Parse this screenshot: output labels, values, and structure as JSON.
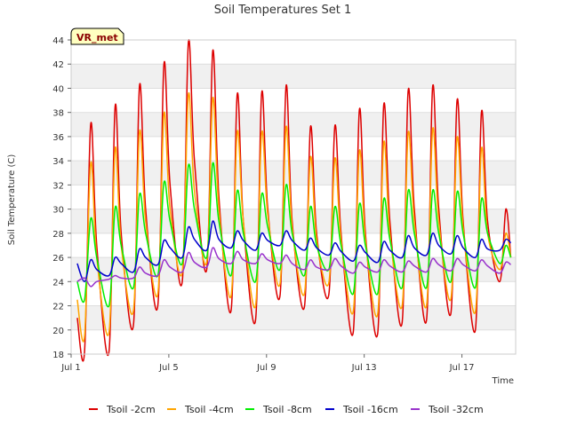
{
  "chart_data": {
    "type": "line",
    "title": "Soil Temperatures Set 1",
    "xlabel": "Time",
    "ylabel": "Soil Temperature (C)",
    "badge": "VR_met",
    "ylim": [
      18,
      44
    ],
    "yticks": [
      18,
      20,
      22,
      24,
      26,
      28,
      30,
      32,
      34,
      36,
      38,
      40,
      42,
      44
    ],
    "xlim": [
      0,
      18.2
    ],
    "xticks": [
      {
        "label": "Jul 1",
        "value": 0
      },
      {
        "label": "Jul 5",
        "value": 4
      },
      {
        "label": "Jul 9",
        "value": 8
      },
      {
        "label": "Jul 13",
        "value": 12
      },
      {
        "label": "Jul 17",
        "value": 16
      }
    ],
    "grid": "horizontal bands",
    "legend_position": "bottom",
    "x": [
      0.25,
      0.55,
      0.8,
      1.05,
      1.55,
      1.8,
      2.05,
      2.55,
      2.8,
      3.05,
      3.55,
      3.8,
      4.05,
      4.55,
      4.8,
      5.05,
      5.55,
      5.8,
      6.05,
      6.55,
      6.8,
      7.05,
      7.55,
      7.8,
      8.05,
      8.55,
      8.8,
      9.05,
      9.55,
      9.8,
      10.05,
      10.55,
      10.8,
      11.05,
      11.55,
      11.8,
      12.05,
      12.55,
      12.8,
      13.05,
      13.55,
      13.8,
      14.05,
      14.55,
      14.8,
      15.05,
      15.55,
      15.8,
      16.05,
      16.55,
      16.8,
      17.05,
      17.55,
      17.8,
      18.0
    ],
    "series": [
      {
        "name": "Tsoil -2cm",
        "color": "#dd0000",
        "values": [
          21,
          18.2,
          37,
          27,
          18.2,
          38.5,
          28,
          20.4,
          40.2,
          30,
          22,
          42,
          32,
          24,
          43.8,
          34,
          25,
          43.1,
          31,
          21.6,
          39.5,
          29,
          20.8,
          39.6,
          30,
          22.8,
          40.2,
          29,
          21.9,
          36.8,
          28,
          22.9,
          36.9,
          28,
          19.8,
          38.2,
          28,
          19.7,
          38.6,
          29,
          20.6,
          39.8,
          30,
          20.8,
          40.1,
          30,
          21.4,
          39,
          29,
          20,
          38,
          29,
          24,
          30,
          26
        ]
      },
      {
        "name": "Tsoil -4cm",
        "color": "#ffa500",
        "values": [
          22.5,
          19.5,
          33.8,
          26,
          19.8,
          35,
          27,
          21.6,
          36.4,
          29,
          23,
          37.9,
          30,
          24.8,
          39.5,
          31.5,
          25.6,
          39.2,
          30,
          22.8,
          36.4,
          29,
          22,
          36.3,
          29.5,
          23.8,
          36.8,
          28.5,
          23,
          34.3,
          27.5,
          23.9,
          34.2,
          27.5,
          21.5,
          34.8,
          27.5,
          21.3,
          35.5,
          28,
          22,
          36.3,
          29,
          22,
          36.6,
          29,
          22.6,
          35.9,
          28.5,
          21.5,
          35,
          28,
          25,
          28,
          26
        ]
      },
      {
        "name": "Tsoil -8cm",
        "color": "#00ee00",
        "values": [
          24,
          22.5,
          29.2,
          26,
          22,
          30.1,
          27,
          23.5,
          31.2,
          28,
          24.5,
          32.2,
          29,
          25.5,
          33.6,
          30,
          26,
          33.8,
          29,
          24.5,
          31.5,
          28,
          24,
          31.2,
          28.5,
          25,
          32,
          28,
          24.5,
          30.2,
          27,
          25,
          30.2,
          27,
          23,
          30.4,
          27,
          23,
          30.8,
          27.5,
          23.5,
          31.5,
          28,
          23.5,
          31.5,
          28,
          24,
          31.4,
          28,
          23.5,
          30.8,
          28,
          25.5,
          27,
          26
        ]
      },
      {
        "name": "Tsoil -16cm",
        "color": "#0000cc",
        "values": [
          25.5,
          24,
          25.8,
          25,
          24.5,
          26,
          25.5,
          24.8,
          26.7,
          26,
          25.4,
          27.4,
          26.8,
          26,
          28.5,
          27.5,
          26.6,
          29,
          27.5,
          26.8,
          28.2,
          27.4,
          26.6,
          28,
          27.4,
          27,
          28.2,
          27.4,
          26.6,
          27.6,
          26.8,
          26.2,
          27.2,
          26.5,
          25.7,
          27,
          26.4,
          25.6,
          27.3,
          26.6,
          26,
          27.8,
          26.8,
          26.2,
          28,
          27,
          26.3,
          27.8,
          26.8,
          26,
          27.5,
          26.7,
          26.6,
          27.5,
          27.2
        ]
      },
      {
        "name": "Tsoil -32cm",
        "color": "#9933cc",
        "values": [
          24,
          24.3,
          23.6,
          24,
          24.2,
          24.5,
          24.3,
          24.3,
          25.2,
          24.7,
          24.5,
          25.8,
          25.2,
          24.8,
          26.4,
          25.6,
          25.2,
          26.8,
          25.9,
          25.5,
          26.5,
          25.8,
          25.5,
          26.3,
          25.8,
          25.5,
          26.2,
          25.5,
          25,
          25.8,
          25.2,
          25,
          25.9,
          25.3,
          24.7,
          25.6,
          25.2,
          24.8,
          25.8,
          25.3,
          24.8,
          25.7,
          25.3,
          24.8,
          25.9,
          25.4,
          24.9,
          25.9,
          25.4,
          24.9,
          25.8,
          25.3,
          24.7,
          25.6,
          25.4
        ]
      }
    ]
  }
}
